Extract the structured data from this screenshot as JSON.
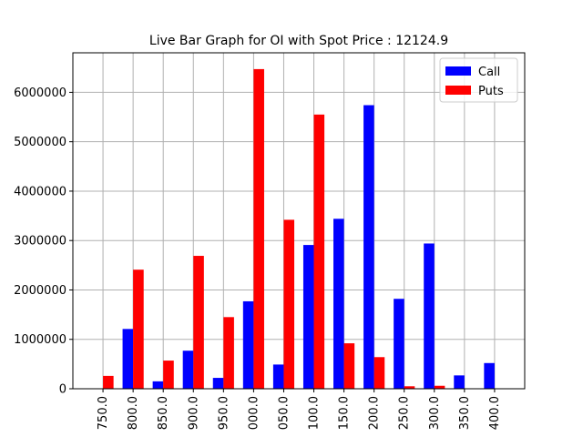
{
  "chart_data": {
    "type": "bar",
    "title": "Live Bar Graph for OI with Spot Price : 12124.9",
    "categories": [
      "750.0",
      "800.0",
      "850.0",
      "900.0",
      "950.0",
      "000.0",
      "050.0",
      "100.0",
      "150.0",
      "200.0",
      "250.0",
      "300.0",
      "350.0",
      "400.0"
    ],
    "series": [
      {
        "name": "Call",
        "color": "#0000ff",
        "values": [
          0,
          1210000,
          150000,
          770000,
          220000,
          1770000,
          490000,
          2910000,
          3440000,
          5740000,
          1820000,
          2940000,
          270000,
          520000
        ]
      },
      {
        "name": "Puts",
        "color": "#ff0000",
        "values": [
          260000,
          2410000,
          570000,
          2690000,
          1450000,
          6470000,
          3420000,
          5550000,
          920000,
          640000,
          50000,
          60000,
          0,
          0
        ]
      }
    ],
    "ylim": [
      0,
      6800000
    ],
    "yticks": [
      0,
      1000000,
      2000000,
      3000000,
      4000000,
      5000000,
      6000000
    ],
    "ytick_labels": [
      "0",
      "1000000",
      "2000000",
      "3000000",
      "4000000",
      "5000000",
      "6000000"
    ],
    "xlabel": "",
    "ylabel": "",
    "grid": true,
    "legend_position": "top-right"
  }
}
